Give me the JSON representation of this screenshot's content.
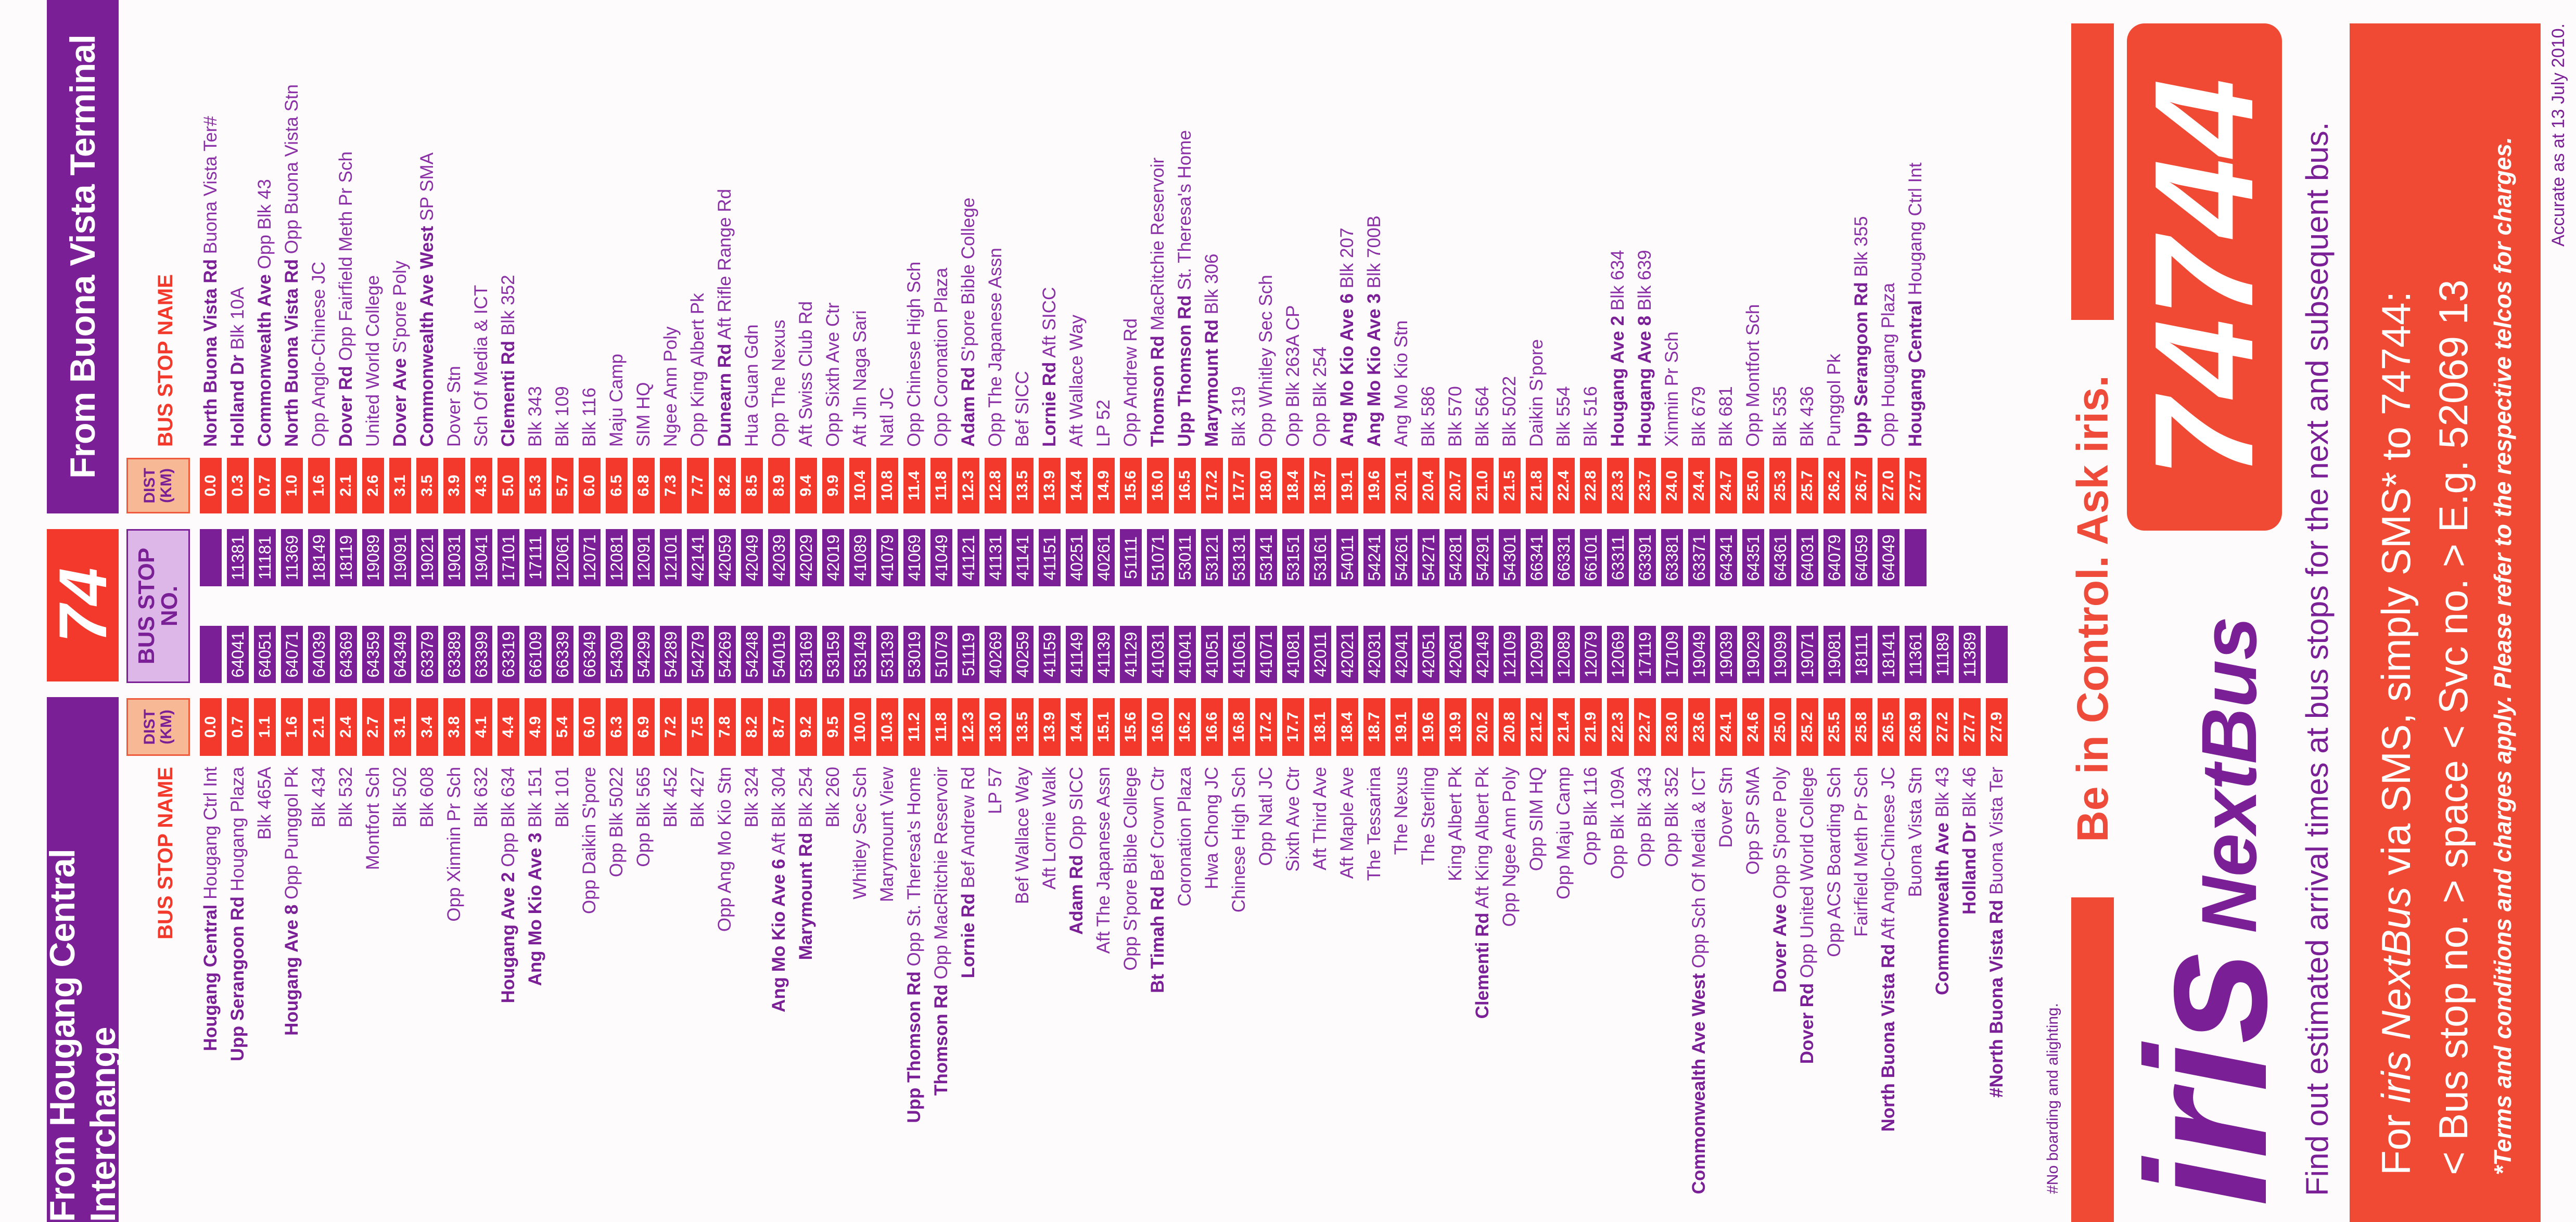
{
  "route": "74",
  "headers": {
    "hougang": "From Hougang Central Interchange",
    "buona_vista": "From Buona Vista Terminal",
    "dist": "DIST (KM)",
    "stop_no": "BUS STOP NO.",
    "stop_name": "BUS STOP NAME"
  },
  "colors": {
    "purple": "#7a1f96",
    "red": "#f2392b",
    "peach": "#f7b995",
    "lavender": "#dcb7e8"
  },
  "hougang": {
    "rows": [
      [
        "Hougang Central",
        "Hougang Ctrl Int",
        "0.0",
        ""
      ],
      [
        "Upp Serangoon Rd",
        "Hougang Plaza",
        "0.7",
        "64041"
      ],
      [
        "",
        "Blk 465A",
        "1.1",
        "64051"
      ],
      [
        "Hougang Ave 8",
        "Opp Punggol Pk",
        "1.6",
        "64071"
      ],
      [
        "",
        "Blk 434",
        "2.1",
        "64039"
      ],
      [
        "",
        "Blk 532",
        "2.4",
        "64369"
      ],
      [
        "",
        "Montfort Sch",
        "2.7",
        "64359"
      ],
      [
        "",
        "Blk 502",
        "3.1",
        "64349"
      ],
      [
        "",
        "Blk 608",
        "3.4",
        "63379"
      ],
      [
        "",
        "Opp Xinmin Pr Sch",
        "3.8",
        "63389"
      ],
      [
        "",
        "Blk 632",
        "4.1",
        "63399"
      ],
      [
        "Hougang Ave 2",
        "Opp Blk 634",
        "4.4",
        "63319"
      ],
      [
        "Ang Mo Kio Ave 3",
        "Blk 151",
        "4.9",
        "66109"
      ],
      [
        "",
        "Blk 101",
        "5.4",
        "66339"
      ],
      [
        "",
        "Opp Daikin S'pore",
        "6.0",
        "66349"
      ],
      [
        "",
        "Opp Blk 5022",
        "6.3",
        "54309"
      ],
      [
        "",
        "Opp Blk 565",
        "6.9",
        "54299"
      ],
      [
        "",
        "Blk 452",
        "7.2",
        "54289"
      ],
      [
        "",
        "Blk 427",
        "7.5",
        "54279"
      ],
      [
        "",
        "Opp Ang Mo Kio Stn",
        "7.8",
        "54269"
      ],
      [
        "",
        "Blk 324",
        "8.2",
        "54248"
      ],
      [
        "Ang Mo Kio Ave 6",
        "Aft Blk 304",
        "8.7",
        "54019"
      ],
      [
        "Marymount Rd",
        "Blk 254",
        "9.2",
        "53169"
      ],
      [
        "",
        "Blk 260",
        "9.5",
        "53159"
      ],
      [
        "",
        "Whitley Sec Sch",
        "10.0",
        "53149"
      ],
      [
        "",
        "Marymount View",
        "10.3",
        "53139"
      ],
      [
        "Upp Thomson Rd",
        "Opp St. Theresa's Home",
        "11.2",
        "53019"
      ],
      [
        "Thomson Rd",
        "Opp MacRitchie Reservoir",
        "11.8",
        "51079"
      ],
      [
        "Lornie Rd",
        "Bef Andrew Rd",
        "12.3",
        "51119"
      ],
      [
        "",
        "LP 57",
        "13.0",
        "40269"
      ],
      [
        "",
        "Bef Wallace Way",
        "13.5",
        "40259"
      ],
      [
        "",
        "Aft Lornie Walk",
        "13.9",
        "41159"
      ],
      [
        "Adam Rd",
        "Opp SICC",
        "14.4",
        "41149"
      ],
      [
        "",
        "Aft The Japanese Assn",
        "15.1",
        "41139"
      ],
      [
        "",
        "Opp S'pore Bible College",
        "15.6",
        "41129"
      ],
      [
        "Bt Timah Rd",
        "Bef Crown Ctr",
        "16.0",
        "41031"
      ],
      [
        "",
        "Coronation Plaza",
        "16.2",
        "41041"
      ],
      [
        "",
        "Hwa Chong JC",
        "16.6",
        "41051"
      ],
      [
        "",
        "Chinese High Sch",
        "16.8",
        "41061"
      ],
      [
        "",
        "Opp Natl JC",
        "17.2",
        "41071"
      ],
      [
        "",
        "Sixth Ave Ctr",
        "17.7",
        "41081"
      ],
      [
        "",
        "Aft Third Ave",
        "18.1",
        "42011"
      ],
      [
        "",
        "Aft Maple Ave",
        "18.4",
        "42021"
      ],
      [
        "",
        "The Tessarina",
        "18.7",
        "42031"
      ],
      [
        "",
        "The Nexus",
        "19.1",
        "42041"
      ],
      [
        "",
        "The Sterling",
        "19.6",
        "42051"
      ],
      [
        "",
        "King Albert Pk",
        "19.9",
        "42061"
      ],
      [
        "Clementi Rd",
        "Aft King Albert Pk",
        "20.2",
        "42149"
      ],
      [
        "",
        "Opp Ngee Ann Poly",
        "20.8",
        "12109"
      ],
      [
        "",
        "Opp SIM HQ",
        "21.2",
        "12099"
      ],
      [
        "",
        "Opp Maju Camp",
        "21.4",
        "12089"
      ],
      [
        "",
        "Opp Blk 116",
        "21.9",
        "12079"
      ],
      [
        "",
        "Opp Blk 109A",
        "22.3",
        "12069"
      ],
      [
        "",
        "Opp Blk 343",
        "22.7",
        "17119"
      ],
      [
        "",
        "Opp Blk 352",
        "23.0",
        "17109"
      ],
      [
        "Commonwealth Ave West",
        "Opp Sch Of Media & ICT",
        "23.6",
        "19049"
      ],
      [
        "",
        "Dover Stn",
        "24.1",
        "19039"
      ],
      [
        "",
        "Opp SP SMA",
        "24.6",
        "19029"
      ],
      [
        "Dover Ave",
        "Opp S'pore Poly",
        "25.0",
        "19099"
      ],
      [
        "Dover Rd",
        "Opp United World College",
        "25.2",
        "19071"
      ],
      [
        "",
        "Opp ACS Boarding Sch",
        "25.5",
        "19081"
      ],
      [
        "",
        "Fairfield Meth Pr Sch",
        "25.8",
        "18111"
      ],
      [
        "North Buona Vista Rd",
        "Aft Anglo-Chinese JC",
        "26.5",
        "18141"
      ],
      [
        "",
        "Buona Vista Stn",
        "26.9",
        "11361"
      ],
      [
        "Commonwealth Ave",
        "Blk 43",
        "27.2",
        "11189"
      ],
      [
        "Holland Dr",
        "Blk 46",
        "27.7",
        "11389"
      ],
      [
        "#North Buona Vista Rd",
        "Buona Vista Ter",
        "27.9",
        ""
      ]
    ]
  },
  "buona_vista": {
    "rows": [
      [
        "North Buona Vista Rd",
        "Buona Vista Ter#",
        "0.0",
        ""
      ],
      [
        "Holland Dr",
        "Blk 10A",
        "0.3",
        "11381"
      ],
      [
        "Commonwealth Ave",
        "Opp Blk 43",
        "0.7",
        "11181"
      ],
      [
        "North Buona Vista Rd",
        "Opp Buona Vista Stn",
        "1.0",
        "11369"
      ],
      [
        "",
        "Opp Anglo-Chinese JC",
        "1.6",
        "18149"
      ],
      [
        "Dover Rd",
        "Opp Fairfield Meth Pr Sch",
        "2.1",
        "18119"
      ],
      [
        "",
        "United World College",
        "2.6",
        "19089"
      ],
      [
        "Dover Ave",
        "S'pore Poly",
        "3.1",
        "19091"
      ],
      [
        "Commonwealth Ave West",
        "SP SMA",
        "3.5",
        "19021"
      ],
      [
        "",
        "Dover Stn",
        "3.9",
        "19031"
      ],
      [
        "",
        "Sch Of Media & ICT",
        "4.3",
        "19041"
      ],
      [
        "Clementi Rd",
        "Blk 352",
        "5.0",
        "17101"
      ],
      [
        "",
        "Blk 343",
        "5.3",
        "17111"
      ],
      [
        "",
        "Blk 109",
        "5.7",
        "12061"
      ],
      [
        "",
        "Blk 116",
        "6.0",
        "12071"
      ],
      [
        "",
        "Maju Camp",
        "6.5",
        "12081"
      ],
      [
        "",
        "SIM HQ",
        "6.8",
        "12091"
      ],
      [
        "",
        "Ngee Ann Poly",
        "7.3",
        "12101"
      ],
      [
        "",
        "Opp King Albert Pk",
        "7.7",
        "42141"
      ],
      [
        "Dunearn Rd",
        "Aft Rifle Range Rd",
        "8.2",
        "42059"
      ],
      [
        "",
        "Hua Guan Gdn",
        "8.5",
        "42049"
      ],
      [
        "",
        "Opp The Nexus",
        "8.9",
        "42039"
      ],
      [
        "",
        "Aft Swiss Club Rd",
        "9.4",
        "42029"
      ],
      [
        "",
        "Opp Sixth Ave Ctr",
        "9.9",
        "42019"
      ],
      [
        "",
        "Aft Jln Naga Sari",
        "10.4",
        "41089"
      ],
      [
        "",
        "Natl JC",
        "10.8",
        "41079"
      ],
      [
        "",
        "Opp Chinese High Sch",
        "11.4",
        "41069"
      ],
      [
        "",
        "Opp Coronation Plaza",
        "11.8",
        "41049"
      ],
      [
        "Adam Rd",
        "S'pore Bible College",
        "12.3",
        "41121"
      ],
      [
        "",
        "Opp The Japanese Assn",
        "12.8",
        "41131"
      ],
      [
        "",
        "Bef SICC",
        "13.5",
        "41141"
      ],
      [
        "Lornie Rd",
        "Aft SICC",
        "13.9",
        "41151"
      ],
      [
        "",
        "Aft Wallace Way",
        "14.4",
        "40251"
      ],
      [
        "",
        "LP 52",
        "14.9",
        "40261"
      ],
      [
        "",
        "Opp Andrew Rd",
        "15.6",
        "51111"
      ],
      [
        "Thomson Rd",
        "MacRitchie Reservoir",
        "16.0",
        "51071"
      ],
      [
        "Upp Thomson Rd",
        "St. Theresa's Home",
        "16.5",
        "53011"
      ],
      [
        "Marymount Rd",
        "Blk 306",
        "17.2",
        "53121"
      ],
      [
        "",
        "Blk 319",
        "17.7",
        "53131"
      ],
      [
        "",
        "Opp Whitley Sec Sch",
        "18.0",
        "53141"
      ],
      [
        "",
        "Opp Blk 263A CP",
        "18.4",
        "53151"
      ],
      [
        "",
        "Opp Blk 254",
        "18.7",
        "53161"
      ],
      [
        "Ang Mo Kio Ave 6",
        "Blk 207",
        "19.1",
        "54011"
      ],
      [
        "Ang Mo Kio Ave 3",
        "Blk 700B",
        "19.6",
        "54241"
      ],
      [
        "",
        "Ang Mo Kio Stn",
        "20.1",
        "54261"
      ],
      [
        "",
        "Blk 586",
        "20.4",
        "54271"
      ],
      [
        "",
        "Blk 570",
        "20.7",
        "54281"
      ],
      [
        "",
        "Blk 564",
        "21.0",
        "54291"
      ],
      [
        "",
        "Blk 5022",
        "21.5",
        "54301"
      ],
      [
        "",
        "Daikin S'pore",
        "21.8",
        "66341"
      ],
      [
        "",
        "Blk 554",
        "22.4",
        "66331"
      ],
      [
        "",
        "Blk 516",
        "22.8",
        "66101"
      ],
      [
        "Hougang Ave 2",
        "Blk 634",
        "23.3",
        "63311"
      ],
      [
        "Hougang Ave 8",
        "Blk 639",
        "23.7",
        "63391"
      ],
      [
        "",
        "Xinmin Pr Sch",
        "24.0",
        "63381"
      ],
      [
        "",
        "Blk 679",
        "24.4",
        "63371"
      ],
      [
        "",
        "Blk 681",
        "24.7",
        "64341"
      ],
      [
        "",
        "Opp Montfort Sch",
        "25.0",
        "64351"
      ],
      [
        "",
        "Blk 535",
        "25.3",
        "64361"
      ],
      [
        "",
        "Blk 436",
        "25.7",
        "64031"
      ],
      [
        "",
        "Punggol Pk",
        "26.2",
        "64079"
      ],
      [
        "Upp Serangoon Rd",
        "Blk 355",
        "26.7",
        "64059"
      ],
      [
        "",
        "Opp Hougang Plaza",
        "27.0",
        "64049"
      ],
      [
        "Hougang Central",
        "Hougang Ctrl Int",
        "27.7",
        ""
      ]
    ]
  },
  "footnote": "#No boarding and alighting.",
  "ad": {
    "tagline": "Be in Control. Ask iris.",
    "sms_number": "74744",
    "logo_iris": "iris",
    "logo_nextbus": "NextBus",
    "description": "Find out estimated arrival times at bus stops for the next and subsequent bus.",
    "sms_line1_prefix": "For",
    "sms_line1_brand": "iris NextBus",
    "sms_line1_suffix": "via SMS, simply SMS* to 74744:",
    "sms_line2": "< Bus stop no. > space < Svc no. > E.g. 52069 13",
    "terms": "*Terms and conditions and charges apply. Please refer to the respective telcos for charges.",
    "accurate": "Accurate as at 13 July 2010."
  }
}
